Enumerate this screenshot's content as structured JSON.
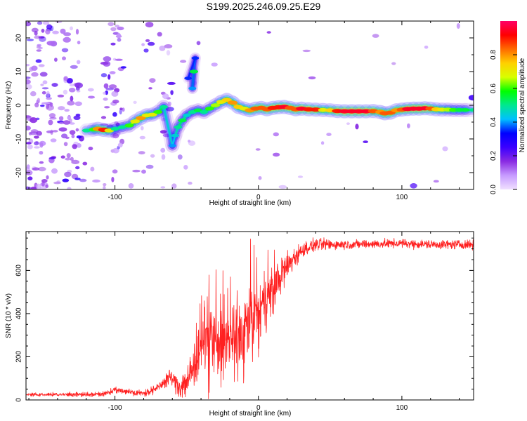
{
  "title": "S199.2025.246.09.25.E29",
  "chart_data": [
    {
      "type": "heatmap",
      "xlabel": "Height of straight line (km)",
      "ylabel": "Frequency (Hz)",
      "xlim": [
        -162,
        150
      ],
      "ylim": [
        -25,
        25
      ],
      "xticks": [
        -100,
        0,
        100
      ],
      "yticks": [
        -20,
        -10,
        0,
        10,
        20
      ],
      "colorbar": {
        "label": "Normalized spectral amplitude",
        "range": [
          0,
          1
        ],
        "ticks": [
          "0.0",
          "0.2",
          "0.4",
          "0.6",
          "0.8"
        ],
        "colormap": [
          "#f0e0ff",
          "#c79bff",
          "#8a2be2",
          "#3b00ff",
          "#0000ff",
          "#00c0ff",
          "#00e890",
          "#00ff00",
          "#d8ff00",
          "#ffd000",
          "#ff6a00",
          "#ff0000",
          "#ff0066"
        ]
      },
      "ridge": [
        [
          -120,
          -7.5,
          0.5
        ],
        [
          -115,
          -7.2,
          0.6
        ],
        [
          -112,
          -7.0,
          0.8
        ],
        [
          -108,
          -7.3,
          0.9
        ],
        [
          -104,
          -7.5,
          0.7
        ],
        [
          -100,
          -7.0,
          0.5
        ],
        [
          -95,
          -6.5,
          0.5
        ],
        [
          -90,
          -6.0,
          0.6
        ],
        [
          -86,
          -4.8,
          0.7
        ],
        [
          -82,
          -3.8,
          0.8
        ],
        [
          -78,
          -3.0,
          0.7
        ],
        [
          -74,
          -2.8,
          0.7
        ],
        [
          -70,
          -2.0,
          0.6
        ],
        [
          -66,
          -0.5,
          0.5
        ],
        [
          -60,
          -12.0,
          0.4
        ],
        [
          -58,
          -9.0,
          0.45
        ],
        [
          -56,
          -6.5,
          0.5
        ],
        [
          -53,
          -4.5,
          0.55
        ],
        [
          -50,
          -3.0,
          0.45
        ],
        [
          -46,
          -2.0,
          0.5
        ],
        [
          -42,
          -1.5,
          0.55
        ],
        [
          -38,
          -2.0,
          0.5
        ],
        [
          -34,
          -1.0,
          0.6
        ],
        [
          -30,
          0.0,
          0.65
        ],
        [
          -26,
          1.0,
          0.7
        ],
        [
          -22,
          1.6,
          0.75
        ],
        [
          -18,
          0.8,
          0.8
        ],
        [
          -14,
          -0.5,
          0.75
        ],
        [
          -10,
          -1.0,
          0.7
        ],
        [
          -6,
          -1.5,
          0.8
        ],
        [
          -2,
          -1.0,
          0.85
        ],
        [
          2,
          -0.8,
          0.85
        ],
        [
          6,
          -1.2,
          0.85
        ],
        [
          10,
          -0.8,
          0.9
        ],
        [
          14,
          -0.6,
          0.9
        ],
        [
          18,
          -0.5,
          0.95
        ],
        [
          22,
          -0.8,
          0.85
        ],
        [
          26,
          -1.2,
          0.85
        ],
        [
          30,
          -1.0,
          0.95
        ],
        [
          35,
          -1.2,
          0.9
        ],
        [
          40,
          -1.3,
          0.9
        ],
        [
          45,
          -1.4,
          0.7
        ],
        [
          50,
          -1.5,
          0.75
        ],
        [
          55,
          -1.7,
          0.9
        ],
        [
          60,
          -1.8,
          0.95
        ],
        [
          65,
          -1.8,
          0.95
        ],
        [
          70,
          -1.8,
          0.95
        ],
        [
          75,
          -1.8,
          0.95
        ],
        [
          80,
          -1.7,
          0.85
        ],
        [
          85,
          -2.0,
          0.8
        ],
        [
          88,
          -2.4,
          0.85
        ],
        [
          92,
          -2.2,
          0.85
        ],
        [
          96,
          -1.5,
          0.8
        ],
        [
          100,
          -1.3,
          0.85
        ],
        [
          104,
          -1.1,
          0.95
        ],
        [
          108,
          -1.0,
          0.95
        ],
        [
          112,
          -1.0,
          0.95
        ],
        [
          116,
          -0.9,
          0.95
        ],
        [
          120,
          -1.0,
          0.85
        ],
        [
          124,
          -1.2,
          0.75
        ],
        [
          128,
          -1.3,
          0.7
        ],
        [
          132,
          -1.3,
          0.65
        ],
        [
          136,
          -1.4,
          0.6
        ],
        [
          140,
          -1.4,
          0.55
        ],
        [
          144,
          -1.4,
          0.55
        ],
        [
          150,
          -1.4,
          0.5
        ]
      ],
      "side_branch": [
        [
          -45,
          10.0,
          0.55
        ],
        [
          -46,
          5.0,
          0.4
        ],
        [
          -44,
          14.0,
          0.35
        ],
        [
          -49,
          8.0,
          0.35
        ]
      ]
    },
    {
      "type": "line",
      "xlabel": "Height of straight line (km)",
      "ylabel": "SNR (10 * v/v)",
      "xlim": [
        -162,
        150
      ],
      "ylim": [
        0,
        780
      ],
      "xticks": [
        -100,
        0,
        100
      ],
      "yticks": [
        0,
        200,
        400,
        600
      ],
      "color": "#ff2020",
      "trend": {
        "x": [
          -162,
          -110,
          -100,
          -92,
          -80,
          -70,
          -62,
          -55,
          -48,
          -42,
          -35,
          -28,
          -20,
          -12,
          -5,
          0,
          5,
          12,
          18,
          25,
          32,
          40,
          60,
          100,
          120,
          150
        ],
        "y": [
          25,
          25,
          45,
          40,
          30,
          55,
          110,
          60,
          100,
          230,
          290,
          260,
          290,
          300,
          380,
          400,
          460,
          540,
          600,
          660,
          700,
          720,
          720,
          725,
          720,
          720
        ]
      },
      "noise": {
        "x": [
          -162,
          -100,
          -80,
          -60,
          -50,
          -40,
          -20,
          -5,
          10,
          20,
          30,
          60,
          150
        ],
        "amp": [
          10,
          20,
          20,
          50,
          130,
          200,
          220,
          230,
          170,
          110,
          50,
          30,
          30
        ]
      }
    }
  ]
}
